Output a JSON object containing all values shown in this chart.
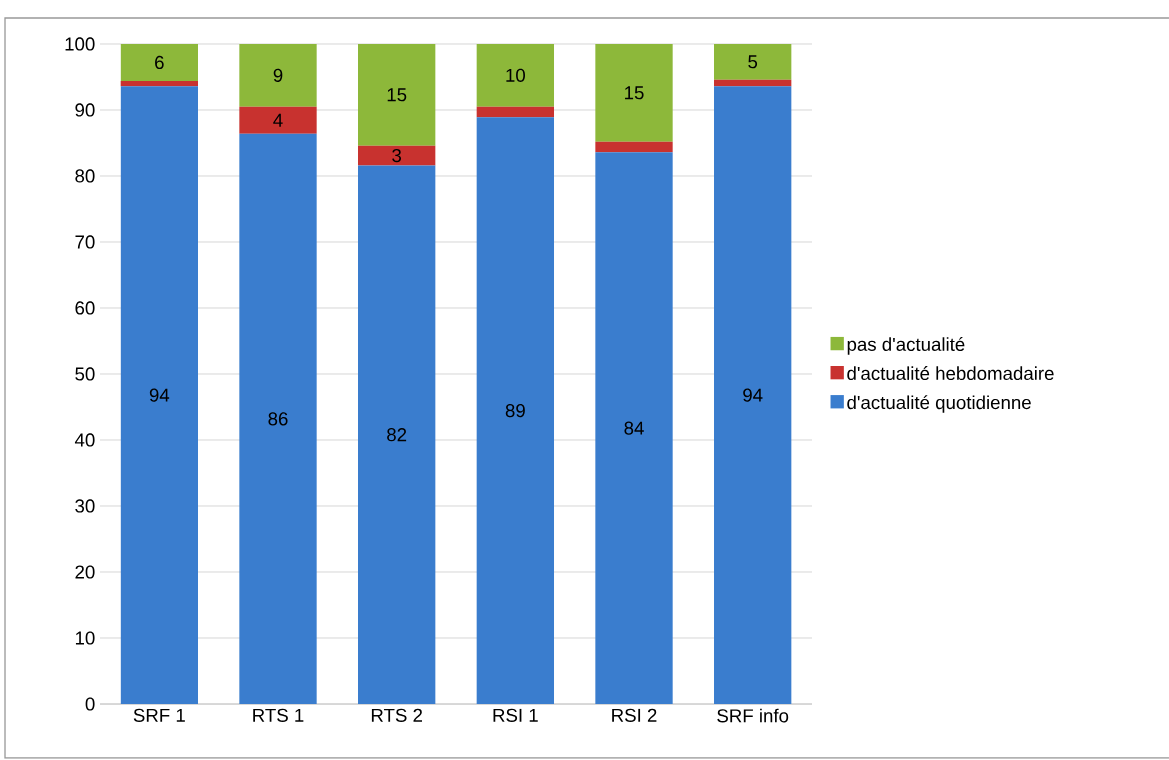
{
  "chart_data": {
    "type": "bar",
    "stacked": true,
    "categories": [
      "SRF 1",
      "RTS 1",
      "RTS 2",
      "RSI 1",
      "RSI 2",
      "SRF info"
    ],
    "series": [
      {
        "name": "d'actualité quotidienne",
        "color": "#3a7dce",
        "values": [
          93.6,
          86.4,
          81.6,
          88.9,
          83.6,
          93.6
        ],
        "value_labels": [
          "94",
          "86",
          "82",
          "89",
          "84",
          "94"
        ]
      },
      {
        "name": "d'actualité hebdomadaire",
        "color": "#c8322f",
        "values": [
          0.8,
          4.1,
          3.0,
          1.6,
          1.6,
          1.0
        ],
        "value_labels": [
          null,
          "4",
          "3",
          null,
          null,
          null
        ]
      },
      {
        "name": "pas d'actualité",
        "color": "#8db83a",
        "values": [
          5.6,
          9.5,
          15.4,
          9.5,
          14.8,
          5.4
        ],
        "value_labels": [
          "6",
          "9",
          "15",
          "10",
          "15",
          "5"
        ]
      }
    ],
    "ylim": [
      0,
      100
    ],
    "yticks": [
      0,
      10,
      20,
      30,
      40,
      50,
      60,
      70,
      80,
      90,
      100
    ],
    "grid": "y",
    "legend": "right"
  }
}
